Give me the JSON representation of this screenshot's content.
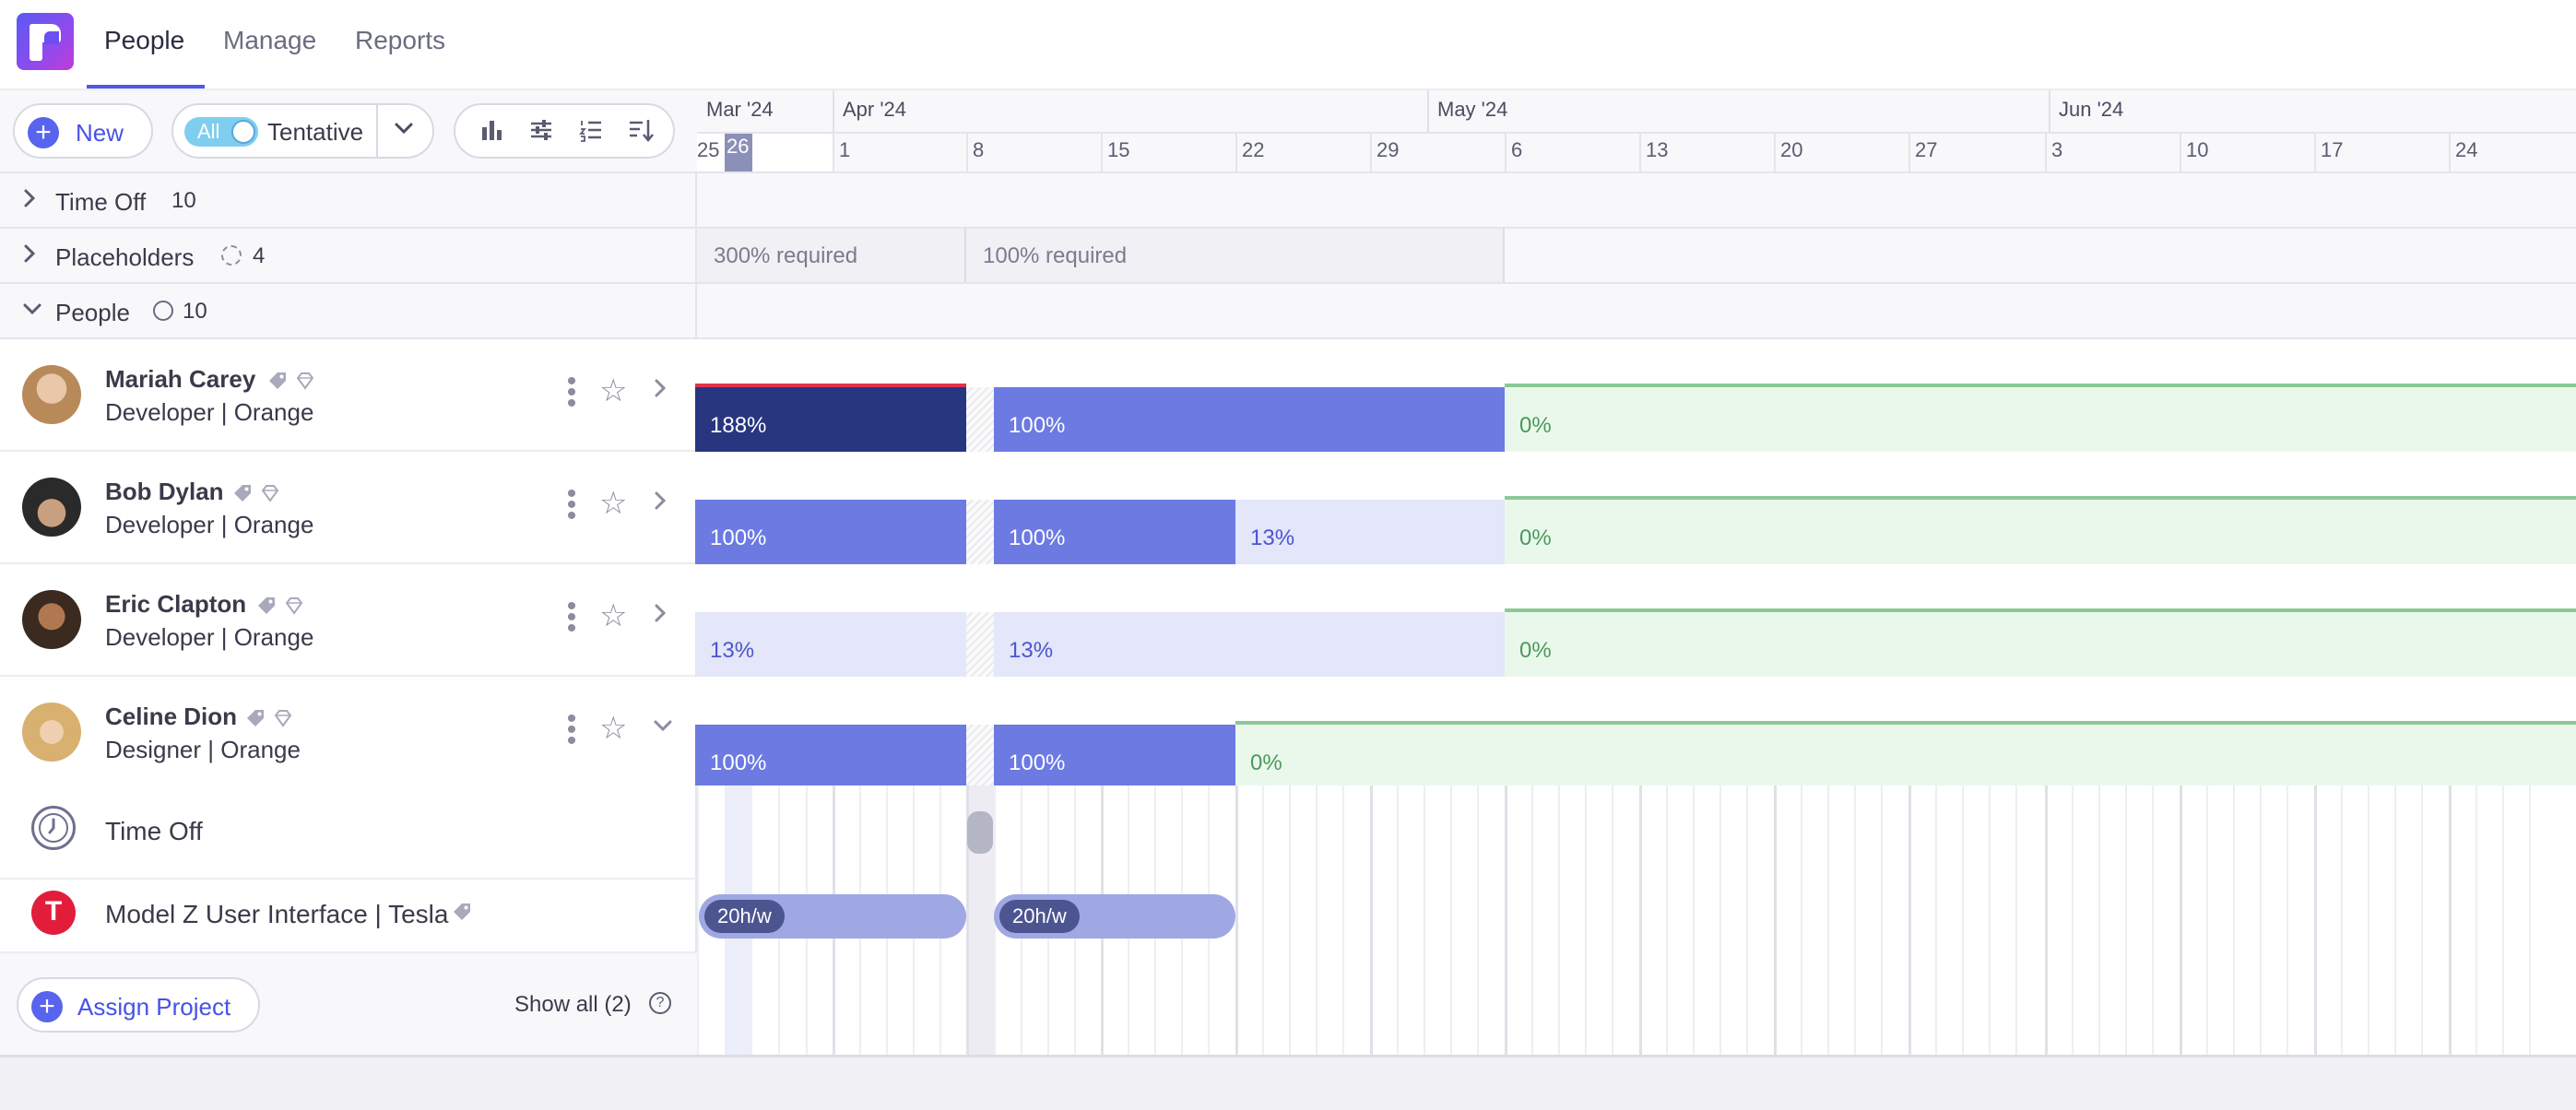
{
  "nav": {
    "tabs": [
      {
        "label": "People"
      },
      {
        "label": "Manage"
      },
      {
        "label": "Reports"
      }
    ]
  },
  "toolbar": {
    "new_label": "New",
    "toggle_label": "All",
    "tentative_label": "Tentative"
  },
  "timeline": {
    "months": [
      "Mar '24",
      "Apr '24",
      "May '24",
      "Jun '24"
    ],
    "weeks": [
      "25",
      "26",
      "1",
      "8",
      "15",
      "22",
      "29",
      "6",
      "13",
      "20",
      "27",
      "3",
      "10",
      "17",
      "24"
    ]
  },
  "groups": {
    "time_off": {
      "label": "Time Off",
      "count": "10"
    },
    "placeholders": {
      "label": "Placeholders",
      "count": "4",
      "req1": "300% required",
      "req2": "100% required"
    },
    "people": {
      "label": "People",
      "count": "10"
    }
  },
  "people": [
    {
      "name": "Mariah Carey",
      "role": "Developer | Orange",
      "bars": [
        "188%",
        "100%",
        "0%"
      ]
    },
    {
      "name": "Bob Dylan",
      "role": "Developer | Orange",
      "bars": [
        "100%",
        "100%",
        "13%",
        "0%"
      ]
    },
    {
      "name": "Eric Clapton",
      "role": "Developer | Orange",
      "bars": [
        "13%",
        "13%",
        "0%"
      ]
    },
    {
      "name": "Celine Dion",
      "role": "Designer | Orange",
      "bars": [
        "100%",
        "100%",
        "0%"
      ]
    }
  ],
  "sub": {
    "time_off_label": "Time Off",
    "project_label": "Model Z User Interface | Tesla",
    "assign_label": "Assign Project",
    "show_all": "Show all (2)",
    "chip1": "20h/w",
    "chip2": "20h/w"
  },
  "colors": {
    "accent": "#5059e6",
    "over": "#e0344e",
    "full": "#6c7ae2",
    "dark": "#283680",
    "available": "#eaf8ec",
    "available_line": "#8cc896"
  }
}
